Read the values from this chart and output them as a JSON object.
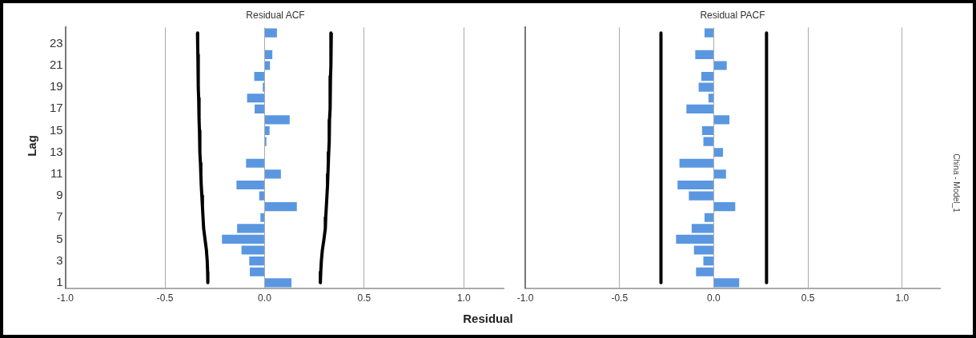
{
  "chart_data": [
    {
      "type": "bar",
      "orientation": "horizontal",
      "title": "Residual ACF",
      "xlabel": "Residual",
      "ylabel": "Lag",
      "grid": "x",
      "categories": [
        null,
        "23",
        null,
        "21",
        null,
        "19",
        null,
        "17",
        null,
        "15",
        null,
        "13",
        null,
        "11",
        null,
        "9",
        null,
        "7",
        null,
        "5",
        null,
        "3",
        null,
        "1"
      ],
      "xlim": [
        -1,
        1.2
      ],
      "xticks": [
        {
          "value": -1,
          "label": "-1.0"
        },
        {
          "value": -0.5,
          "label": "-0.5"
        },
        {
          "value": 0,
          "label": "0.0"
        },
        {
          "value": 0.5,
          "label": "0.5"
        },
        {
          "value": 1,
          "label": "1.0"
        }
      ],
      "series": [
        {
          "color": "#5a97e0",
          "values": [
            0.062,
            0.0,
            0.039,
            0.027,
            -0.052,
            -0.009,
            -0.088,
            -0.05,
            0.126,
            0.025,
            0.009,
            0.0,
            -0.093,
            0.082,
            -0.141,
            -0.027,
            0.162,
            -0.021,
            -0.138,
            -0.214,
            -0.116,
            -0.077,
            -0.074,
            0.135
          ]
        },
        {
          "type": "line",
          "color": "#000000",
          "values": [
            -0.337,
            -0.336,
            -0.335,
            -0.334,
            -0.333,
            -0.332,
            -0.331,
            -0.33,
            -0.328,
            -0.327,
            -0.326,
            -0.324,
            -0.322,
            -0.32,
            -0.318,
            -0.315,
            -0.312,
            -0.309,
            -0.306,
            -0.299,
            -0.292,
            -0.288,
            -0.286,
            -0.285
          ]
        },
        {
          "type": "line",
          "color": "#000000",
          "values": [
            0.335,
            0.334,
            0.333,
            0.332,
            0.331,
            0.33,
            0.329,
            0.328,
            0.326,
            0.325,
            0.324,
            0.322,
            0.32,
            0.318,
            0.316,
            0.313,
            0.31,
            0.307,
            0.305,
            0.298,
            0.29,
            0.285,
            0.282,
            0.28
          ]
        }
      ]
    },
    {
      "type": "bar",
      "orientation": "horizontal",
      "title": "Residual PACF",
      "grid": "x",
      "tick_labels": "x",
      "annotations": [
        "China - Model_1"
      ],
      "categories": [
        null,
        "23",
        null,
        "21",
        null,
        "19",
        null,
        "17",
        null,
        "15",
        null,
        "13",
        null,
        "11",
        null,
        "9",
        null,
        "7",
        null,
        "5",
        null,
        "3",
        null,
        "1"
      ],
      "xlim": [
        -1,
        1.2
      ],
      "xticks": [
        {
          "value": -1,
          "label": "-1.0"
        },
        {
          "value": -0.5,
          "label": "-0.5"
        },
        {
          "value": 0,
          "label": "0.0"
        },
        {
          "value": 0.5,
          "label": "0.5"
        },
        {
          "value": 1,
          "label": "1.0"
        }
      ],
      "series": [
        {
          "color": "#5a97e0",
          "values": [
            -0.049,
            0.0,
            -0.098,
            0.069,
            -0.066,
            -0.08,
            -0.028,
            -0.145,
            0.083,
            -0.062,
            -0.055,
            0.049,
            -0.182,
            0.065,
            -0.192,
            -0.132,
            0.114,
            -0.049,
            -0.117,
            -0.2,
            -0.105,
            -0.055,
            -0.094,
            0.135
          ]
        },
        {
          "type": "line",
          "color": "#000000",
          "values": [
            -0.28,
            -0.28,
            -0.28,
            -0.28,
            -0.28,
            -0.28,
            -0.28,
            -0.28,
            -0.28,
            -0.28,
            -0.28,
            -0.28,
            -0.28,
            -0.28,
            -0.28,
            -0.28,
            -0.28,
            -0.28,
            -0.28,
            -0.28,
            -0.28,
            -0.28,
            -0.28,
            -0.28
          ]
        },
        {
          "type": "line",
          "color": "#000000",
          "values": [
            0.28,
            0.28,
            0.28,
            0.28,
            0.28,
            0.28,
            0.28,
            0.28,
            0.28,
            0.28,
            0.28,
            0.28,
            0.28,
            0.28,
            0.28,
            0.28,
            0.28,
            0.28,
            0.28,
            0.28,
            0.28,
            0.28,
            0.28,
            0.28
          ]
        }
      ]
    }
  ]
}
